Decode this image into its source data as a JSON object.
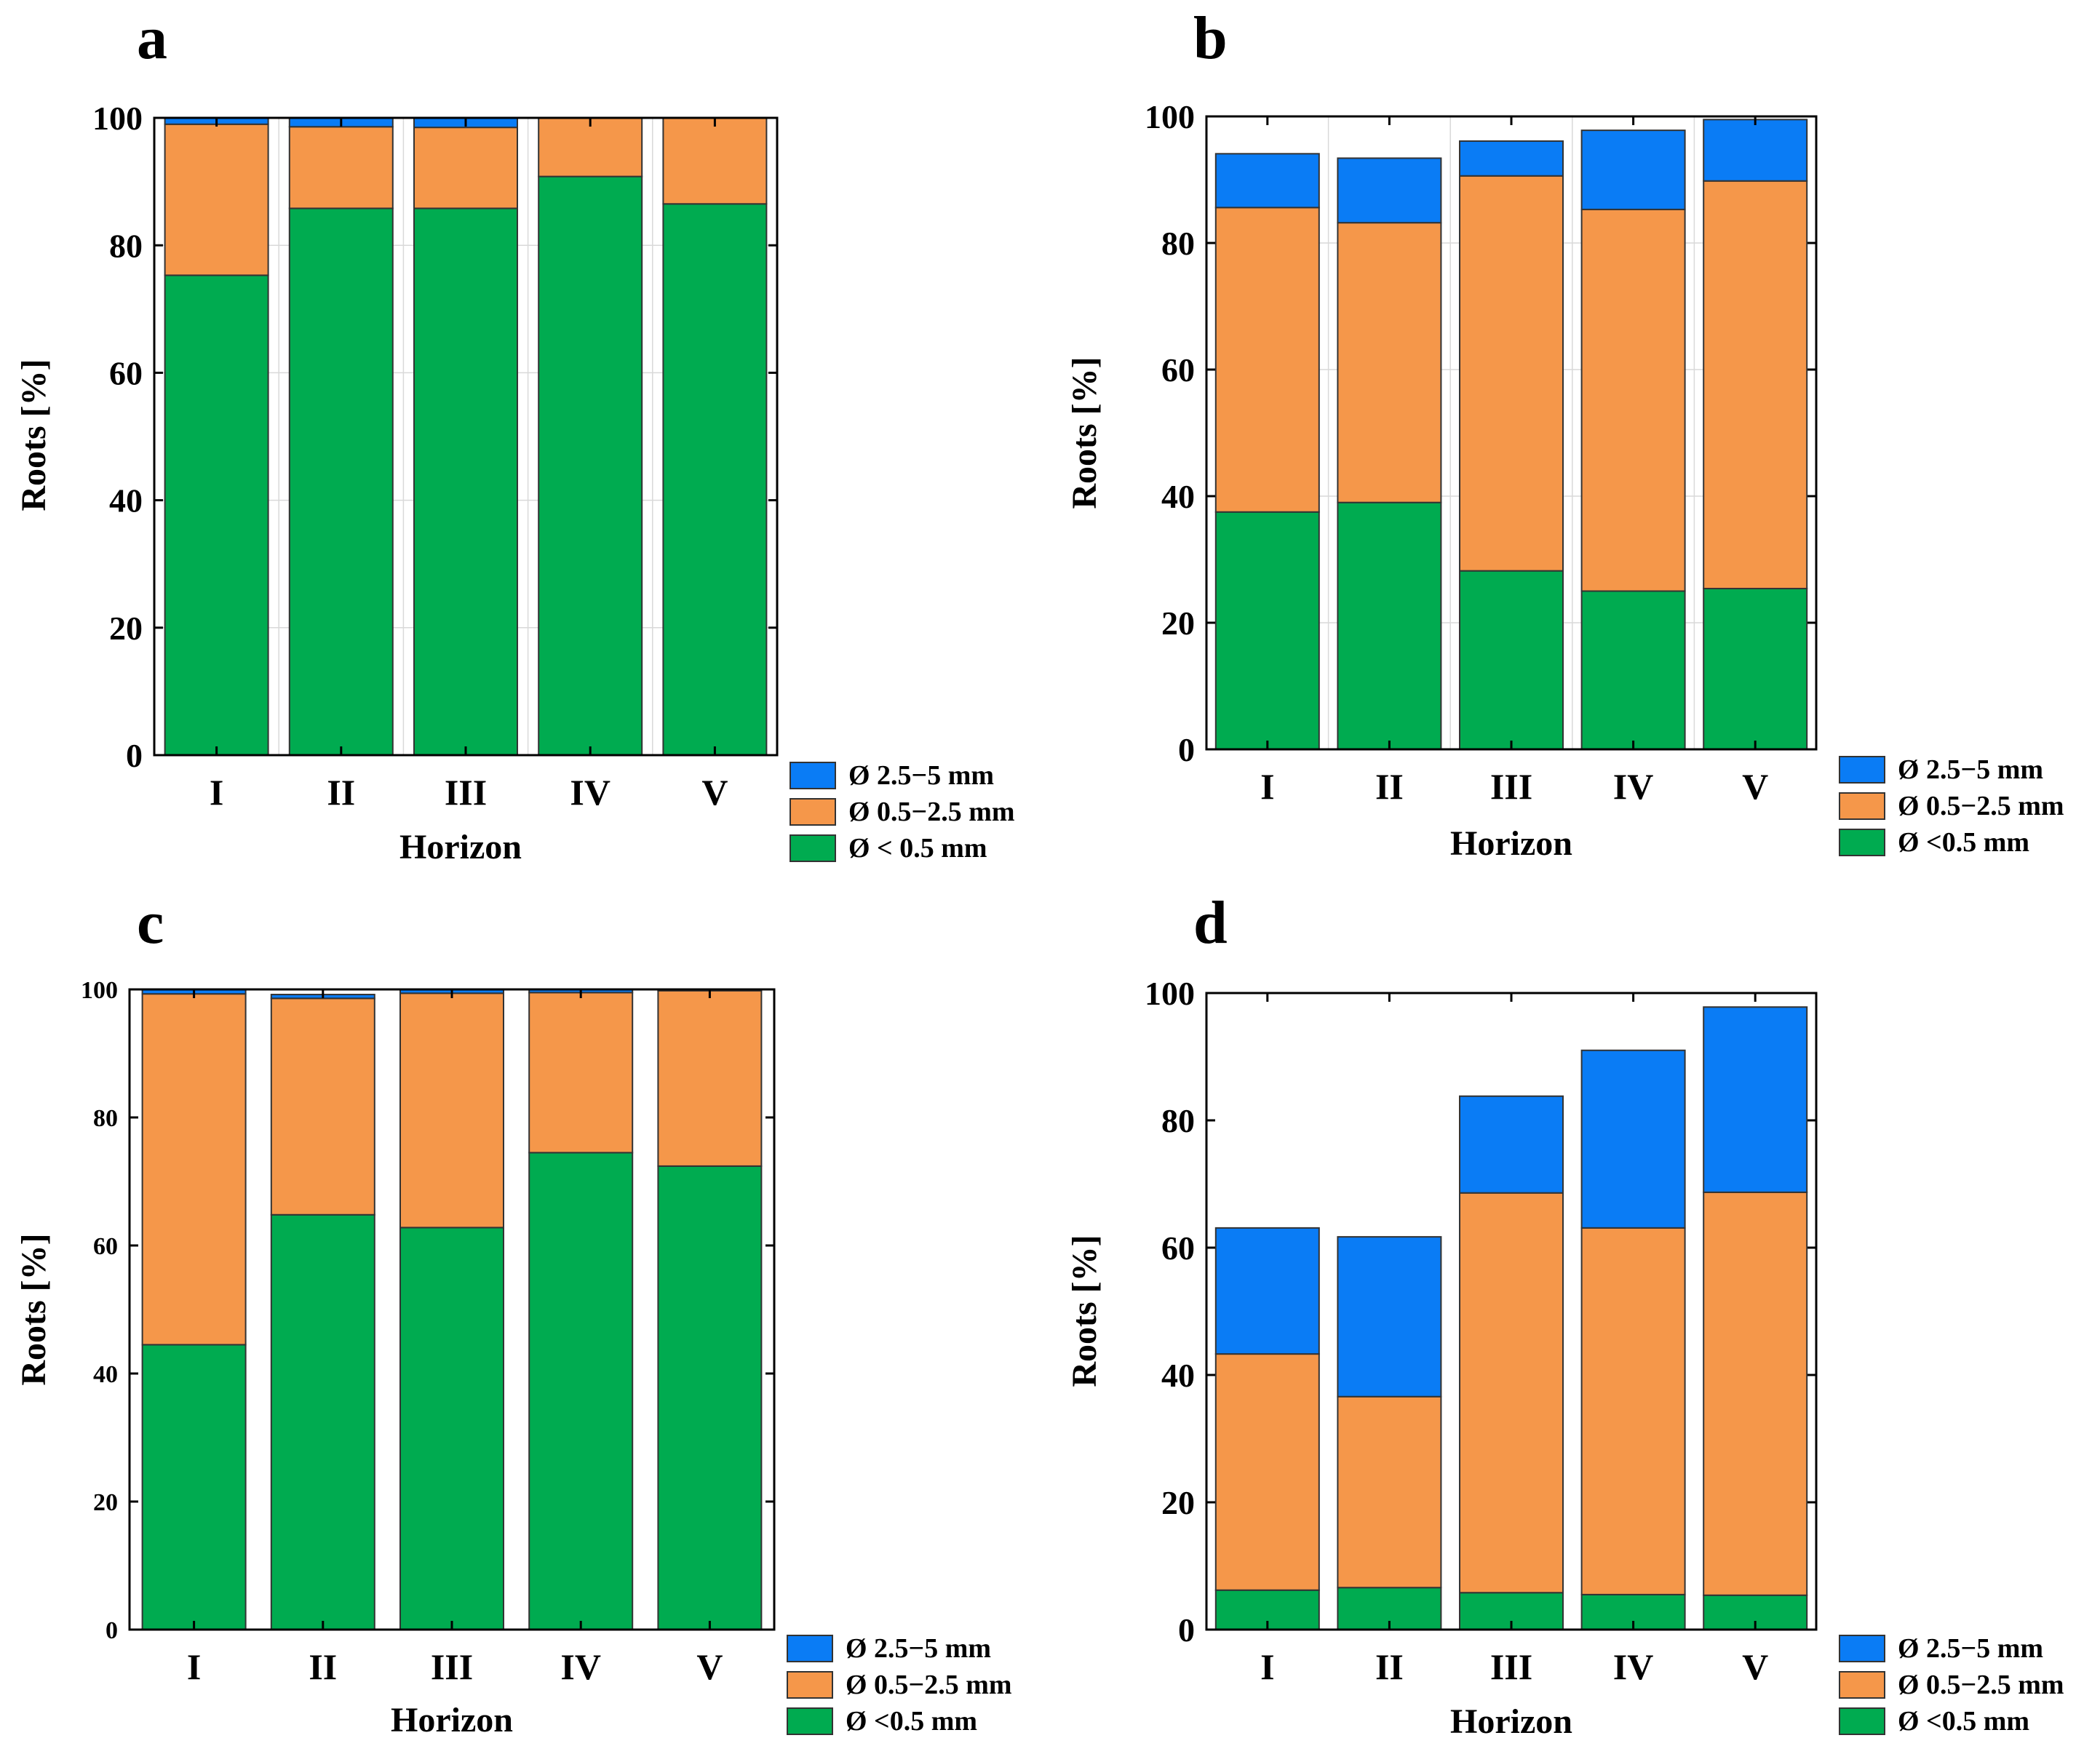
{
  "colors": {
    "coarse": "#0a7cf5",
    "medium": "#f5974a",
    "fine": "#00ab50"
  },
  "chart_data": [
    {
      "panel": "a",
      "type": "bar",
      "stacked": true,
      "categories": [
        "I",
        "II",
        "III",
        "IV",
        "V"
      ],
      "series": [
        {
          "name": "Ø < 0.5 mm",
          "key": "fine",
          "values": [
            75.3,
            85.8,
            85.8,
            90.8,
            86.5
          ]
        },
        {
          "name": "Ø 0.5−2.5 mm",
          "key": "medium",
          "values": [
            23.7,
            12.8,
            12.7,
            9.2,
            13.5
          ]
        },
        {
          "name": "Ø 2.5−5 mm",
          "key": "coarse",
          "values": [
            1.0,
            1.4,
            1.5,
            0,
            0
          ]
        }
      ],
      "legend_order": [
        "coarse",
        "medium",
        "fine"
      ],
      "xlabel": "Horizon",
      "ylabel": "Roots [%]",
      "ylim": [
        0,
        100
      ],
      "yticks": [
        0,
        20,
        40,
        60,
        80,
        100
      ],
      "grid": true
    },
    {
      "panel": "b",
      "type": "bar",
      "stacked": true,
      "categories": [
        "I",
        "II",
        "III",
        "IV",
        "V"
      ],
      "series": [
        {
          "name": "Ø <0.5 mm",
          "key": "fine",
          "values": [
            37.5,
            39.0,
            28.2,
            25.0,
            25.4
          ]
        },
        {
          "name": "Ø 0.5−2.5 mm",
          "key": "medium",
          "values": [
            48.1,
            44.2,
            62.4,
            60.3,
            64.4
          ]
        },
        {
          "name": "Ø 2.5−5 mm",
          "key": "coarse",
          "values": [
            8.5,
            10.2,
            5.5,
            12.5,
            9.7
          ]
        }
      ],
      "legend_order": [
        "coarse",
        "medium",
        "fine"
      ],
      "xlabel": "Horizon",
      "ylabel": "Roots [%]",
      "ylim": [
        0,
        100
      ],
      "yticks": [
        0,
        20,
        40,
        60,
        80,
        100
      ],
      "grid": true
    },
    {
      "panel": "c",
      "type": "bar",
      "stacked": true,
      "categories": [
        "I",
        "II",
        "III",
        "IV",
        "V"
      ],
      "series": [
        {
          "name": "Ø <0.5 mm",
          "key": "fine",
          "values": [
            44.5,
            64.8,
            62.8,
            74.5,
            72.4
          ]
        },
        {
          "name": "Ø 0.5−2.5 mm",
          "key": "medium",
          "values": [
            54.8,
            33.8,
            36.6,
            25.0,
            27.4
          ]
        },
        {
          "name": "Ø 2.5−5 mm",
          "key": "coarse",
          "values": [
            0.7,
            0.6,
            0.6,
            0.5,
            0.2
          ]
        }
      ],
      "legend_order": [
        "coarse",
        "medium",
        "fine"
      ],
      "xlabel": "Horizon",
      "ylabel": "Roots [%]",
      "ylim": [
        0,
        100
      ],
      "yticks": [
        0,
        20,
        40,
        60,
        80,
        100
      ],
      "grid": false
    },
    {
      "panel": "d",
      "type": "bar",
      "stacked": true,
      "categories": [
        "I",
        "II",
        "III",
        "IV",
        "V"
      ],
      "series": [
        {
          "name": "Ø <0.5 mm",
          "key": "fine",
          "values": [
            6.2,
            6.6,
            5.8,
            5.5,
            5.4
          ]
        },
        {
          "name": "Ø 0.5−2.5 mm",
          "key": "medium",
          "values": [
            37.1,
            30.0,
            62.8,
            57.6,
            63.3
          ]
        },
        {
          "name": "Ø 2.5−5 mm",
          "key": "coarse",
          "values": [
            19.8,
            25.1,
            15.2,
            27.9,
            29.1
          ]
        }
      ],
      "legend_order": [
        "coarse",
        "medium",
        "fine"
      ],
      "xlabel": "Horizon",
      "ylabel": "Roots [%]",
      "ylim": [
        0,
        100
      ],
      "yticks": [
        0,
        20,
        40,
        60,
        80,
        100
      ],
      "grid": false
    }
  ]
}
